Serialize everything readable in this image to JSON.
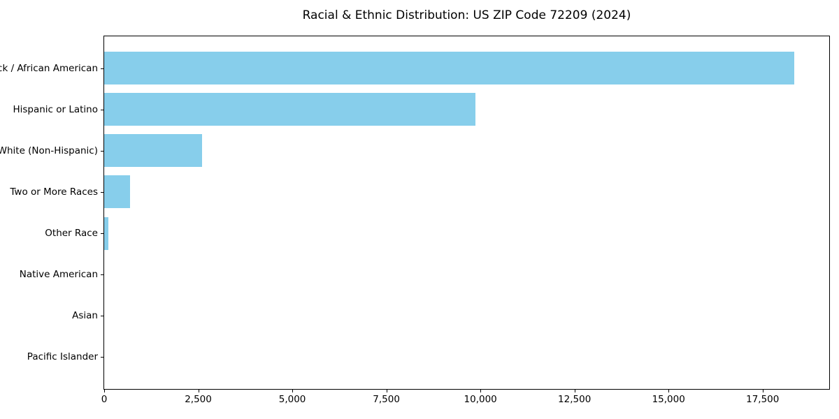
{
  "chart_data": {
    "type": "bar",
    "orientation": "horizontal",
    "title": "Racial & Ethnic Distribution: US ZIP Code 72209 (2024)",
    "categories": [
      "Black / African American",
      "Hispanic or Latino",
      "White (Non-Hispanic)",
      "Two or More Races",
      "Other Race",
      "Native American",
      "Asian",
      "Pacific Islander"
    ],
    "values": [
      18350,
      9860,
      2600,
      690,
      120,
      0,
      0,
      0
    ],
    "xlabel": "",
    "ylabel": "",
    "xlim": [
      0,
      19270
    ],
    "xticks": [
      {
        "value": 0,
        "label": "0"
      },
      {
        "value": 2500,
        "label": "2,500"
      },
      {
        "value": 5000,
        "label": "5,000"
      },
      {
        "value": 7500,
        "label": "7,500"
      },
      {
        "value": 10000,
        "label": "10,000"
      },
      {
        "value": 12500,
        "label": "12,500"
      },
      {
        "value": 15000,
        "label": "15,000"
      },
      {
        "value": 17500,
        "label": "17,500"
      }
    ],
    "grid": false,
    "legend": null,
    "colors": {
      "bar": "#87CEEB",
      "spine": "#000000",
      "text": "#000000",
      "background": "#ffffff"
    }
  }
}
